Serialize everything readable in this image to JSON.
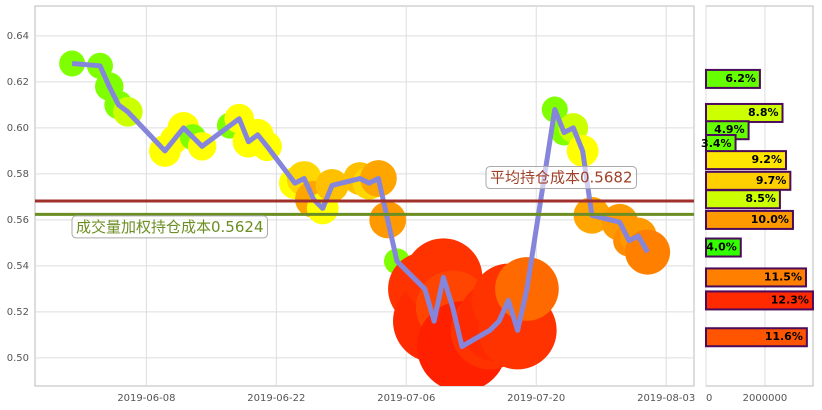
{
  "chart_data": [
    {
      "type": "line",
      "x": [
        "2019-05-31",
        "2019-06-03",
        "2019-06-04",
        "2019-06-05",
        "2019-06-06",
        "2019-06-10",
        "2019-06-11",
        "2019-06-12",
        "2019-06-13",
        "2019-06-14",
        "2019-06-17",
        "2019-06-18",
        "2019-06-19",
        "2019-06-20",
        "2019-06-21",
        "2019-06-24",
        "2019-06-25",
        "2019-06-26",
        "2019-06-27",
        "2019-06-28",
        "2019-07-01",
        "2019-07-02",
        "2019-07-03",
        "2019-07-04",
        "2019-07-05",
        "2019-07-08",
        "2019-07-09",
        "2019-07-10",
        "2019-07-11",
        "2019-07-12",
        "2019-07-15",
        "2019-07-16",
        "2019-07-17",
        "2019-07-18",
        "2019-07-19",
        "2019-07-22",
        "2019-07-23",
        "2019-07-24",
        "2019-07-25",
        "2019-07-26",
        "2019-07-29",
        "2019-07-30",
        "2019-07-31",
        "2019-08-01"
      ],
      "line": {
        "color": "#8585dc",
        "values": [
          0.628,
          0.627,
          0.618,
          0.61,
          0.607,
          0.59,
          0.595,
          0.6,
          0.596,
          0.592,
          0.601,
          0.604,
          0.594,
          0.597,
          0.592,
          0.576,
          0.578,
          0.569,
          0.565,
          0.575,
          0.578,
          0.576,
          0.578,
          0.56,
          0.542,
          0.53,
          0.516,
          0.535,
          0.522,
          0.505,
          0.512,
          0.516,
          0.525,
          0.512,
          0.53,
          0.608,
          0.598,
          0.6,
          0.59,
          0.562,
          0.559,
          0.551,
          0.553,
          0.546
        ]
      },
      "bubbles": {
        "sizes": [
          1,
          1,
          1.2,
          1.2,
          1.3,
          1.5,
          1.2,
          1.5,
          1,
          1.2,
          1,
          1.3,
          1.5,
          1.5,
          1.3,
          1.5,
          1.8,
          2,
          1.5,
          1.6,
          1.6,
          1.6,
          2,
          2,
          1,
          8,
          10,
          9,
          8,
          12,
          9,
          10,
          8,
          9,
          6,
          1,
          1,
          1.3,
          1.5,
          2,
          2,
          1.5,
          2,
          3
        ],
        "colors": [
          "#7fff00",
          "#7fff00",
          "#7fff00",
          "#7fff00",
          "#ccff00",
          "#ffff00",
          "#ffff00",
          "#ffff00",
          "#7fff00",
          "#ffff00",
          "#7fff00",
          "#ffff00",
          "#ffff00",
          "#ffff00",
          "#ffff00",
          "#ffff00",
          "#ffd700",
          "#ffa500",
          "#ffff00",
          "#ffc000",
          "#ffc000",
          "#ffd700",
          "#ffa500",
          "#ff9900",
          "#7fff00",
          "#ff3300",
          "#ff2a00",
          "#ff3300",
          "#ff4500",
          "#ff2000",
          "#ff3300",
          "#ff2a00",
          "#ff3300",
          "#ff3300",
          "#ff6a00",
          "#7fff00",
          "#7fff00",
          "#ccff00",
          "#ffff00",
          "#ffa500",
          "#ff9900",
          "#ff8c00",
          "#ff9900",
          "#ff8000"
        ]
      },
      "hlines": [
        {
          "value": 0.5682,
          "color": "#a0302a",
          "label": "平均持仓成本0.5682",
          "text_color": "#a0422a"
        },
        {
          "value": 0.5624,
          "color": "#6b8e23",
          "label": "成交量加权持仓成本0.5624",
          "text_color": "#6b8e23"
        }
      ],
      "xlim": [
        "2019-05-27",
        "2019-08-06"
      ],
      "xticks": [
        "2019-06-08",
        "2019-06-22",
        "2019-07-06",
        "2019-07-20",
        "2019-08-03"
      ],
      "ylim": [
        0.4878,
        0.653
      ],
      "yticks": [
        {
          "value": 0.5,
          "label": "0.50"
        },
        0.52,
        0.54,
        0.56,
        0.58,
        {
          "value": 0.6,
          "label": "0.60"
        },
        0.62,
        0.64
      ],
      "grid": true
    },
    {
      "type": "barh",
      "y": [
        0.6213,
        0.6065,
        0.599,
        0.593,
        0.586,
        0.577,
        0.569,
        0.56,
        0.548,
        0.535,
        0.525,
        0.509
      ],
      "values": [
        1829000,
        2596000,
        1445500,
        1003000,
        2714000,
        2861500,
        2507500,
        2950000,
        1180000,
        3392500,
        3628500,
        3422000
      ],
      "value_labels": [
        "6.2%",
        "8.8%",
        "4.9%",
        "3.4%",
        "9.2%",
        "9.7%",
        "8.5%",
        "10.0%",
        "4.0%",
        "11.5%",
        "12.3%",
        "11.6%"
      ],
      "colors": [
        "#66ff00",
        "#ccff00",
        "#66ff00",
        "#66ff00",
        "#ffe600",
        "#ffd000",
        "#ccff00",
        "#ff9900",
        "#33ff00",
        "#ff8000",
        "#ff2a00",
        "#ff5500"
      ],
      "border": "#4b0a5a",
      "xlim": [
        0,
        3630000
      ],
      "xticks": [
        0,
        2000000
      ],
      "ylim": [
        0.4878,
        0.653
      ],
      "grid": true
    }
  ]
}
